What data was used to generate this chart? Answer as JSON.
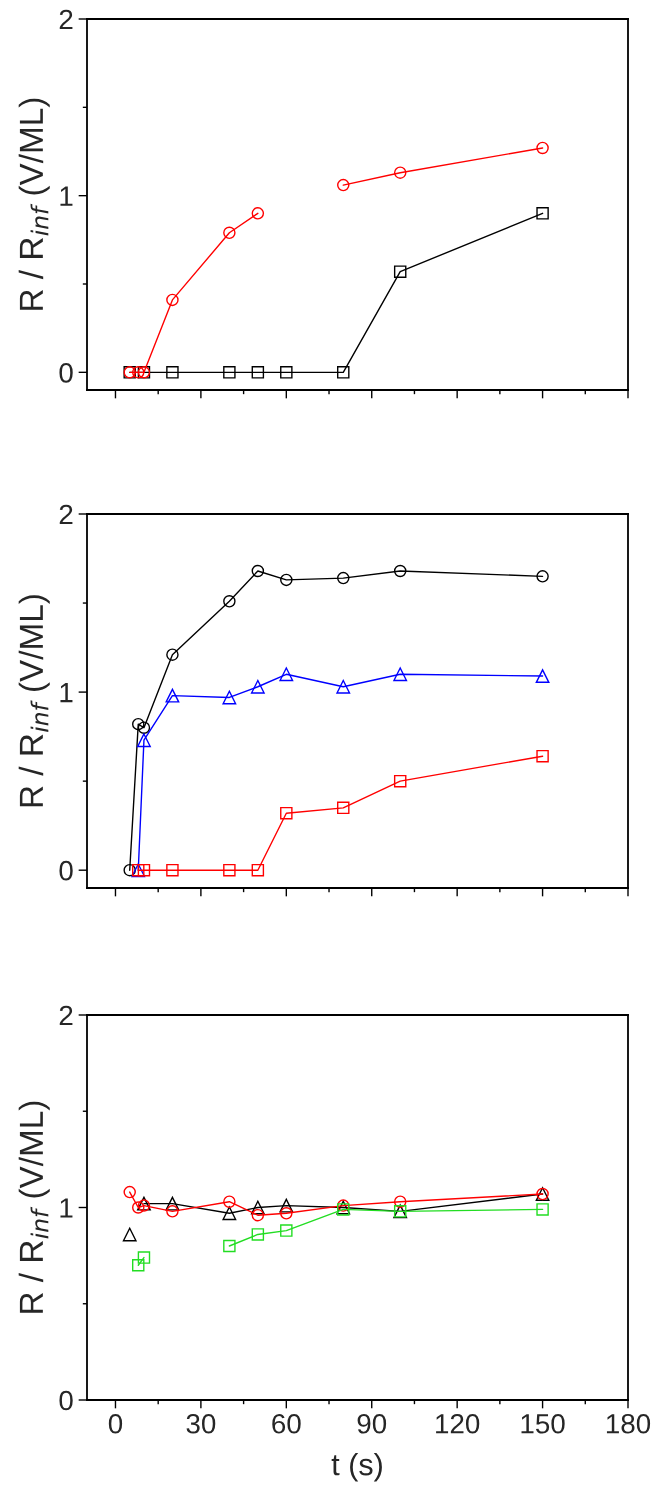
{
  "chart_data": [
    {
      "type": "line",
      "ylabel": "R / R$_{inf}$ (V/ML)",
      "xlim": [
        -10,
        180
      ],
      "xticks": [
        {
          "value": 0,
          "label": null
        },
        {
          "value": 30,
          "label": null
        },
        {
          "value": 60,
          "label": null
        },
        {
          "value": 90,
          "label": null
        },
        {
          "value": 120,
          "label": null
        },
        {
          "value": 150,
          "label": null
        },
        {
          "value": 180,
          "label": null
        }
      ],
      "ylim": [
        -0.1,
        2
      ],
      "yticks": [
        0,
        1,
        2
      ],
      "tick_labels": "y",
      "grid": false,
      "legend": false,
      "line_style": "solid",
      "series": [
        {
          "color": "#000000",
          "marker": "square",
          "x": [
            5,
            10,
            20,
            40,
            50,
            60,
            80,
            100,
            150
          ],
          "values": [
            0,
            0,
            0,
            0,
            0,
            0,
            0,
            0.57,
            0.9
          ]
        },
        {
          "color": "#ff0000",
          "marker": "circle",
          "x": [
            5,
            8,
            10,
            20,
            40,
            50
          ],
          "values": [
            0,
            0,
            0,
            0.41,
            0.79,
            0.9
          ]
        },
        {
          "color": "#ff0000",
          "marker": "circle",
          "x": [
            80,
            100,
            150
          ],
          "values": [
            1.06,
            1.13,
            1.27
          ]
        }
      ]
    },
    {
      "type": "line",
      "ylabel": "R / R$_{inf}$ (V/ML)",
      "xlim": [
        -10,
        180
      ],
      "xticks": [
        {
          "value": 0,
          "label": null
        },
        {
          "value": 30,
          "label": null
        },
        {
          "value": 60,
          "label": null
        },
        {
          "value": 90,
          "label": null
        },
        {
          "value": 120,
          "label": null
        },
        {
          "value": 150,
          "label": null
        },
        {
          "value": 180,
          "label": null
        }
      ],
      "ylim": [
        -0.1,
        2
      ],
      "yticks": [
        0,
        1,
        2
      ],
      "tick_labels": "y",
      "grid": false,
      "legend": false,
      "line_style": "solid",
      "series": [
        {
          "color": "#000000",
          "marker": "circle",
          "x": [
            5,
            8,
            10,
            20,
            40,
            50,
            60,
            80,
            100,
            150
          ],
          "values": [
            0,
            0.82,
            0.8,
            1.21,
            1.51,
            1.68,
            1.63,
            1.64,
            1.68,
            1.65
          ]
        },
        {
          "color": "#0000ff",
          "marker": "triangle",
          "x": [
            8,
            10,
            20,
            40,
            50,
            60,
            80,
            100,
            150
          ],
          "values": [
            0,
            0.73,
            0.98,
            0.97,
            1.03,
            1.1,
            1.03,
            1.1,
            1.09
          ]
        },
        {
          "color": "#ff0000",
          "marker": "square",
          "x": [
            8,
            10,
            20,
            40,
            50,
            60,
            80,
            100,
            150
          ],
          "values": [
            0,
            0,
            0,
            0,
            0,
            0.32,
            0.35,
            0.5,
            0.64
          ]
        }
      ]
    },
    {
      "type": "line",
      "xlabel": "t (s)",
      "ylabel": "R / R$_{inf}$ (V/ML)",
      "xlim": [
        -10,
        180
      ],
      "xticks": [
        0,
        30,
        60,
        90,
        120,
        150,
        180
      ],
      "ylim": [
        0,
        2
      ],
      "yticks": [
        0,
        1,
        2
      ],
      "grid": false,
      "legend": false,
      "line_style": "solid",
      "series": [
        {
          "color": "#000000",
          "marker": "triangle",
          "x": [
            5
          ],
          "values": [
            0.86
          ]
        },
        {
          "color": "#000000",
          "marker": "triangle",
          "x": [
            10,
            20,
            40,
            50,
            60,
            80,
            100,
            150
          ],
          "values": [
            1.02,
            1.02,
            0.97,
            1.0,
            1.01,
            1.0,
            0.98,
            1.07
          ]
        },
        {
          "color": "#ff0000",
          "marker": "circle",
          "x": [
            5,
            8,
            10,
            20,
            40,
            50,
            60,
            80,
            100,
            150
          ],
          "values": [
            1.08,
            1.0,
            1.01,
            0.98,
            1.03,
            0.96,
            0.97,
            1.01,
            1.03,
            1.07
          ]
        },
        {
          "color": "#22dd22",
          "marker": "square",
          "x": [
            8,
            10
          ],
          "values": [
            0.7,
            0.74
          ]
        },
        {
          "color": "#22dd22",
          "marker": "square",
          "x": [
            40,
            50,
            60,
            80,
            100,
            150
          ],
          "values": [
            0.8,
            0.86,
            0.88,
            0.99,
            0.98,
            0.99
          ]
        }
      ]
    }
  ]
}
